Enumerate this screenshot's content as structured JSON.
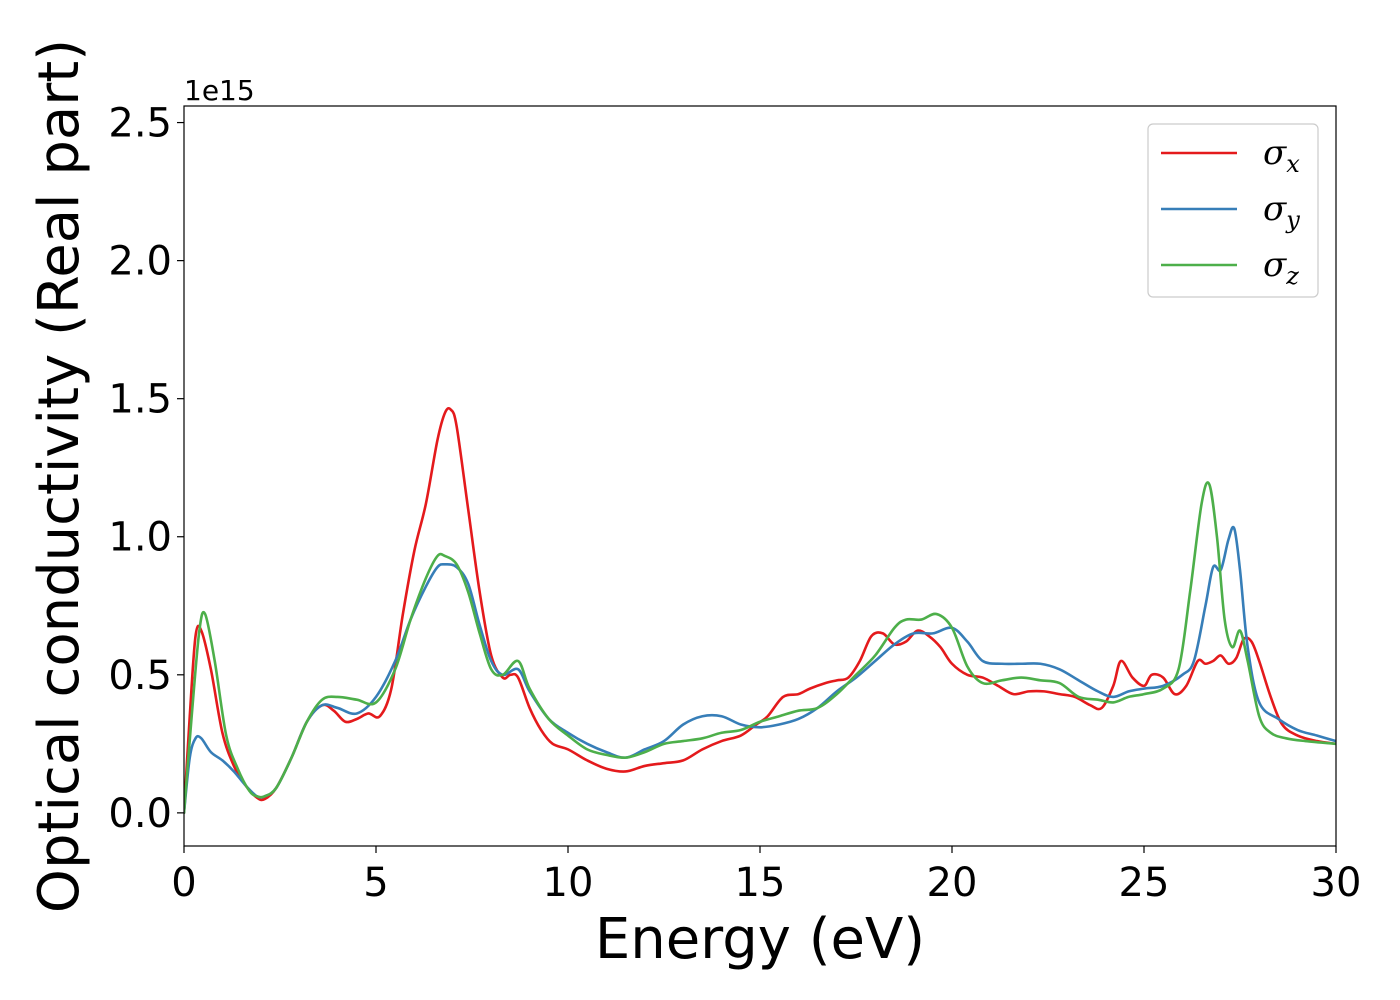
{
  "chart_data": {
    "type": "line",
    "title": "",
    "xlabel": "Energy (eV)",
    "ylabel": "Optical conductivity (Real part)",
    "y_offset_label": "1e15",
    "xlim": [
      0,
      30
    ],
    "ylim": [
      -0.12,
      2.56
    ],
    "xticks": [
      0,
      5,
      10,
      15,
      20,
      25,
      30
    ],
    "xtick_labels": [
      "0",
      "5",
      "10",
      "15",
      "20",
      "25",
      "30"
    ],
    "yticks": [
      0.0,
      0.5,
      1.0,
      1.5,
      2.0,
      2.5
    ],
    "ytick_labels": [
      "0.0",
      "0.5",
      "1.0",
      "1.5",
      "2.0",
      "2.5"
    ],
    "grid": false,
    "legend_position": "top-right",
    "series": [
      {
        "name": "σ",
        "subscript": "x",
        "color": "#e41a1c",
        "x": [
          0,
          0.15,
          0.3,
          0.45,
          0.7,
          1.0,
          1.3,
          1.6,
          1.9,
          2.1,
          2.4,
          2.8,
          3.2,
          3.6,
          3.9,
          4.2,
          4.5,
          4.8,
          5.1,
          5.4,
          5.7,
          6.0,
          6.3,
          6.6,
          6.8,
          6.95,
          7.1,
          7.4,
          7.7,
          8.0,
          8.3,
          8.5,
          8.7,
          9.0,
          9.3,
          9.6,
          10.0,
          10.5,
          11.0,
          11.5,
          12.0,
          12.5,
          13.0,
          13.5,
          14.0,
          14.5,
          14.9,
          15.2,
          15.6,
          16.0,
          16.3,
          16.7,
          17.0,
          17.3,
          17.6,
          17.9,
          18.2,
          18.5,
          18.8,
          19.1,
          19.4,
          19.7,
          20.0,
          20.4,
          20.8,
          21.2,
          21.6,
          22.0,
          22.4,
          22.8,
          23.2,
          23.6,
          23.9,
          24.2,
          24.4,
          24.7,
          25.0,
          25.2,
          25.5,
          25.8,
          26.1,
          26.4,
          26.6,
          26.8,
          27.0,
          27.2,
          27.4,
          27.6,
          27.8,
          28.0,
          28.3,
          28.6,
          29.0,
          29.5,
          30.0
        ],
        "values": [
          0.0,
          0.35,
          0.64,
          0.66,
          0.52,
          0.29,
          0.17,
          0.1,
          0.055,
          0.05,
          0.09,
          0.2,
          0.33,
          0.39,
          0.37,
          0.33,
          0.34,
          0.36,
          0.35,
          0.45,
          0.72,
          0.95,
          1.12,
          1.35,
          1.45,
          1.46,
          1.4,
          1.1,
          0.8,
          0.57,
          0.49,
          0.5,
          0.49,
          0.38,
          0.3,
          0.25,
          0.23,
          0.19,
          0.16,
          0.15,
          0.17,
          0.18,
          0.19,
          0.23,
          0.26,
          0.28,
          0.32,
          0.35,
          0.42,
          0.43,
          0.45,
          0.47,
          0.48,
          0.49,
          0.55,
          0.64,
          0.65,
          0.61,
          0.62,
          0.66,
          0.64,
          0.6,
          0.54,
          0.5,
          0.49,
          0.46,
          0.43,
          0.44,
          0.44,
          0.43,
          0.42,
          0.39,
          0.38,
          0.46,
          0.55,
          0.49,
          0.46,
          0.5,
          0.49,
          0.43,
          0.46,
          0.55,
          0.54,
          0.55,
          0.57,
          0.54,
          0.56,
          0.63,
          0.62,
          0.55,
          0.42,
          0.32,
          0.28,
          0.26,
          0.25
        ]
      },
      {
        "name": "σ",
        "subscript": "y",
        "color": "#377eb8",
        "x": [
          0,
          0.15,
          0.3,
          0.45,
          0.7,
          1.0,
          1.3,
          1.6,
          1.9,
          2.1,
          2.4,
          2.8,
          3.2,
          3.6,
          4.0,
          4.5,
          5.0,
          5.5,
          5.9,
          6.3,
          6.6,
          6.8,
          7.1,
          7.4,
          7.7,
          8.0,
          8.3,
          8.7,
          9.0,
          9.5,
          10.0,
          10.5,
          11.0,
          11.5,
          12.0,
          12.5,
          13.0,
          13.5,
          14.0,
          14.5,
          15.0,
          15.5,
          16.0,
          16.5,
          17.0,
          17.5,
          18.0,
          18.5,
          19.0,
          19.5,
          20.0,
          20.4,
          20.8,
          21.3,
          21.8,
          22.3,
          22.8,
          23.3,
          23.8,
          24.2,
          24.6,
          25.0,
          25.5,
          26.0,
          26.3,
          26.6,
          26.8,
          27.0,
          27.2,
          27.35,
          27.5,
          27.7,
          28.0,
          28.5,
          29.0,
          29.5,
          30.0
        ],
        "values": [
          0.0,
          0.2,
          0.27,
          0.27,
          0.22,
          0.19,
          0.15,
          0.1,
          0.06,
          0.06,
          0.09,
          0.2,
          0.33,
          0.39,
          0.38,
          0.36,
          0.42,
          0.55,
          0.7,
          0.82,
          0.89,
          0.9,
          0.89,
          0.83,
          0.68,
          0.55,
          0.5,
          0.52,
          0.44,
          0.34,
          0.29,
          0.25,
          0.22,
          0.2,
          0.23,
          0.26,
          0.32,
          0.35,
          0.35,
          0.32,
          0.31,
          0.32,
          0.34,
          0.38,
          0.44,
          0.49,
          0.55,
          0.61,
          0.65,
          0.65,
          0.67,
          0.62,
          0.55,
          0.54,
          0.54,
          0.54,
          0.52,
          0.48,
          0.44,
          0.42,
          0.44,
          0.45,
          0.46,
          0.5,
          0.55,
          0.75,
          0.89,
          0.88,
          0.99,
          1.03,
          0.88,
          0.6,
          0.4,
          0.34,
          0.3,
          0.28,
          0.26
        ]
      },
      {
        "name": "σ",
        "subscript": "z",
        "color": "#4daf4a",
        "x": [
          0,
          0.2,
          0.4,
          0.55,
          0.8,
          1.1,
          1.4,
          1.7,
          1.9,
          2.1,
          2.4,
          2.8,
          3.2,
          3.6,
          4.0,
          4.5,
          5.0,
          5.5,
          5.9,
          6.3,
          6.6,
          6.8,
          7.1,
          7.4,
          7.7,
          8.0,
          8.3,
          8.7,
          9.0,
          9.5,
          10.0,
          10.5,
          11.0,
          11.5,
          12.0,
          12.5,
          13.0,
          13.5,
          14.0,
          14.5,
          15.0,
          15.5,
          16.0,
          16.5,
          17.0,
          17.5,
          18.0,
          18.5,
          18.8,
          19.2,
          19.6,
          20.0,
          20.4,
          20.8,
          21.3,
          21.8,
          22.3,
          22.8,
          23.3,
          23.8,
          24.2,
          24.6,
          25.0,
          25.5,
          25.9,
          26.2,
          26.5,
          26.7,
          26.9,
          27.1,
          27.3,
          27.5,
          27.7,
          28.0,
          28.3,
          28.7,
          29.2,
          30.0
        ],
        "values": [
          0.0,
          0.35,
          0.66,
          0.72,
          0.55,
          0.28,
          0.16,
          0.08,
          0.06,
          0.06,
          0.09,
          0.2,
          0.33,
          0.41,
          0.42,
          0.41,
          0.4,
          0.52,
          0.7,
          0.85,
          0.93,
          0.93,
          0.9,
          0.8,
          0.65,
          0.52,
          0.5,
          0.55,
          0.45,
          0.34,
          0.28,
          0.23,
          0.21,
          0.2,
          0.22,
          0.25,
          0.26,
          0.27,
          0.29,
          0.3,
          0.33,
          0.35,
          0.37,
          0.38,
          0.43,
          0.5,
          0.57,
          0.67,
          0.7,
          0.7,
          0.72,
          0.67,
          0.53,
          0.47,
          0.48,
          0.49,
          0.48,
          0.47,
          0.42,
          0.41,
          0.4,
          0.42,
          0.43,
          0.45,
          0.52,
          0.8,
          1.12,
          1.19,
          1.0,
          0.7,
          0.6,
          0.66,
          0.55,
          0.35,
          0.29,
          0.27,
          0.26,
          0.25
        ]
      }
    ]
  }
}
